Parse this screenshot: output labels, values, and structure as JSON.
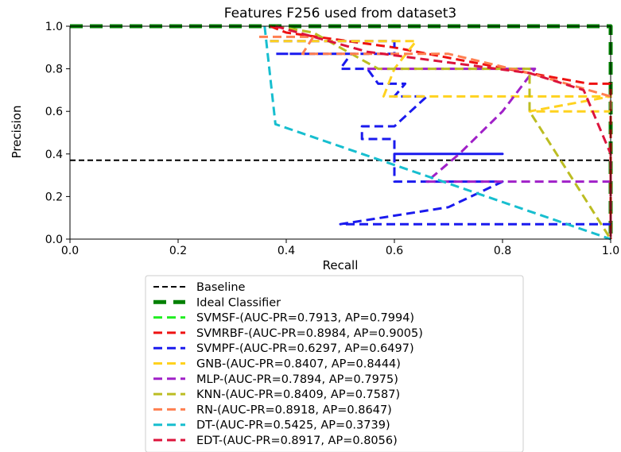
{
  "chart_data": {
    "type": "line",
    "title": "Features F256 used from dataset3",
    "xlabel": "Recall",
    "ylabel": "Precision",
    "xlim": [
      0.0,
      1.0
    ],
    "ylim": [
      0.0,
      1.0
    ],
    "xticks": [
      "0.0",
      "0.2",
      "0.4",
      "0.6",
      "0.8",
      "1.0"
    ],
    "yticks": [
      "0.0",
      "0.2",
      "0.4",
      "0.6",
      "0.8",
      "1.0"
    ],
    "grid": false,
    "legend_position": "below",
    "series": [
      {
        "name": "Baseline",
        "color": "#000000",
        "style": "dashed-thin",
        "x": [
          0.0,
          1.0
        ],
        "y": [
          0.37,
          0.37
        ]
      },
      {
        "name": "Ideal Classifier",
        "color": "#008000",
        "style": "dashed-thick",
        "x": [
          0.0,
          1.0,
          1.0
        ],
        "y": [
          1.0,
          1.0,
          0.0
        ]
      },
      {
        "name": "SVMSF-(AUC-PR=0.7913, AP=0.7994)",
        "color": "#22ee22",
        "style": "dashed",
        "x": [],
        "y": []
      },
      {
        "name": "SVMRBF-(AUC-PR=0.8984, AP=0.9005)",
        "color": "#ee1111",
        "style": "dashed",
        "x": [
          0.37,
          0.4,
          0.6,
          0.85,
          0.96,
          1.0,
          1.0
        ],
        "y": [
          1.0,
          0.97,
          0.9,
          0.78,
          0.73,
          0.73,
          0.0
        ]
      },
      {
        "name": "SVMPF-(AUC-PR=0.6297, AP=0.6497)",
        "color": "#1a1aee",
        "style": "dashed",
        "x": [
          0.37,
          0.6,
          0.6,
          0.38,
          0.4,
          0.52,
          0.5,
          0.55,
          0.57,
          0.62,
          0.6,
          0.66,
          0.6,
          0.54,
          0.54,
          0.6,
          0.6,
          0.8,
          0.6,
          0.6,
          0.66,
          0.66,
          0.8,
          0.7,
          0.5,
          0.55,
          0.75,
          1.0
        ],
        "y": [
          0.93,
          0.93,
          0.87,
          0.87,
          0.87,
          0.87,
          0.8,
          0.8,
          0.73,
          0.73,
          0.67,
          0.67,
          0.53,
          0.53,
          0.47,
          0.47,
          0.4,
          0.4,
          0.4,
          0.27,
          0.27,
          0.27,
          0.27,
          0.15,
          0.07,
          0.07,
          0.07,
          0.07
        ]
      },
      {
        "name": "GNB-(AUC-PR=0.8407, AP=0.8444)",
        "color": "#ffd21f",
        "style": "dashed",
        "x": [
          0.37,
          0.64,
          0.6,
          0.58,
          0.65,
          1.0,
          0.85,
          1.0
        ],
        "y": [
          0.93,
          0.93,
          0.8,
          0.67,
          0.67,
          0.67,
          0.6,
          0.6
        ]
      },
      {
        "name": "MLP-(AUC-PR=0.7894, AP=0.7975)",
        "color": "#a020c8",
        "style": "dashed",
        "x": [
          0.55,
          0.86,
          0.8,
          0.72,
          0.66,
          1.0
        ],
        "y": [
          0.8,
          0.8,
          0.6,
          0.4,
          0.27,
          0.27
        ]
      },
      {
        "name": "KNN-(AUC-PR=0.8409, AP=0.7587)",
        "color": "#bcbd22",
        "style": "dashed",
        "x": [
          0.38,
          0.45,
          0.57,
          0.85,
          0.85,
          1.0
        ],
        "y": [
          1.0,
          0.97,
          0.8,
          0.8,
          0.6,
          0.0
        ]
      },
      {
        "name": "RN-(AUC-PR=0.8918, AP=0.8647)",
        "color": "#ff7f50",
        "style": "dashed",
        "x": [
          0.35,
          0.45,
          0.43,
          0.7,
          0.85,
          1.0,
          1.0
        ],
        "y": [
          0.95,
          0.95,
          0.87,
          0.87,
          0.78,
          0.67,
          0.6
        ]
      },
      {
        "name": "DT-(AUC-PR=0.5425, AP=0.3739)",
        "color": "#17becf",
        "style": "dashed",
        "x": [
          0.36,
          0.38,
          1.0
        ],
        "y": [
          1.0,
          0.54,
          0.0
        ]
      },
      {
        "name": "EDT-(AUC-PR=0.8917, AP=0.8056)",
        "color": "#dc143c",
        "style": "dashed",
        "x": [
          0.38,
          0.55,
          0.85,
          0.95,
          1.0,
          1.0
        ],
        "y": [
          1.0,
          0.88,
          0.78,
          0.7,
          0.4,
          0.0
        ]
      }
    ]
  }
}
